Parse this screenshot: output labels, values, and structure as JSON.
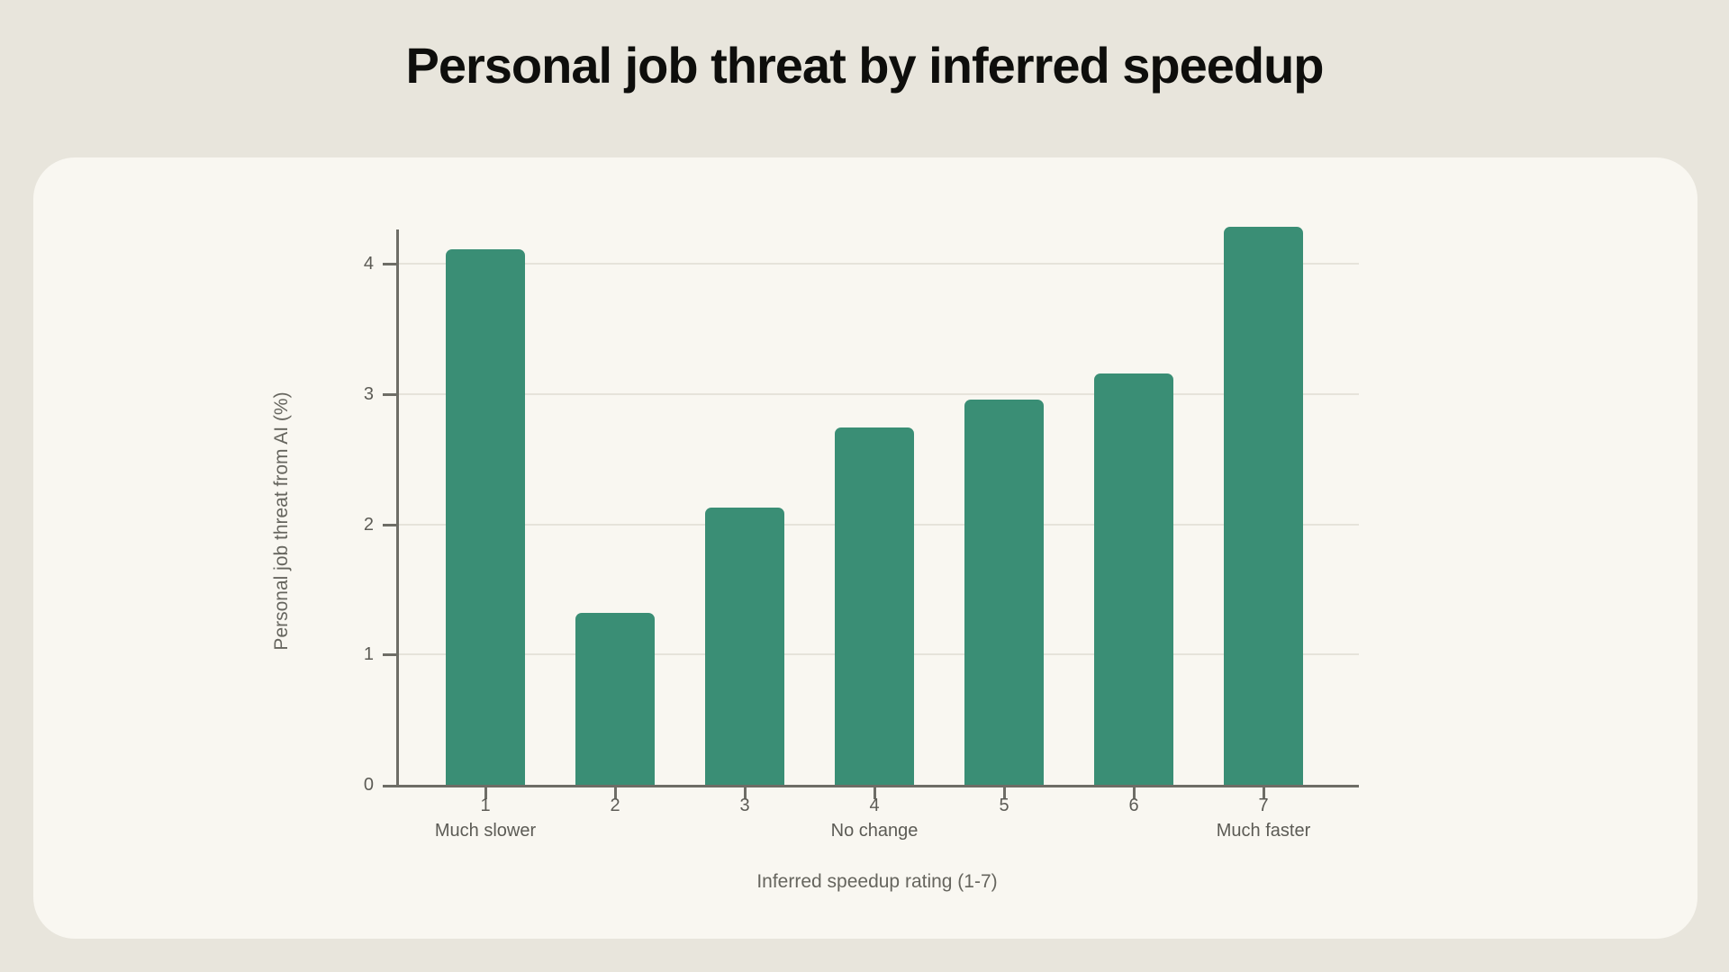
{
  "page": {
    "title": "Personal job threat by inferred speedup"
  },
  "colors": {
    "page_bg": "#e8e5dc",
    "card_bg": "#f9f7f1",
    "bar": "#3a8e75",
    "gridline": "#e6e3da",
    "axis": "#6e6d66",
    "tick_text": "#5c5b55",
    "title_text": "#0e0e0c"
  },
  "chart_data": {
    "type": "bar",
    "title": "Personal job threat by inferred speedup",
    "xlabel": "Inferred speedup rating (1-7)",
    "ylabel": "Personal job threat from AI (%)",
    "categories": [
      "1",
      "2",
      "3",
      "4",
      "5",
      "6",
      "7"
    ],
    "category_sublabels": [
      "Much slower",
      "",
      "",
      "No change",
      "",
      "",
      "Much faster"
    ],
    "values": [
      4.11,
      1.32,
      2.13,
      2.74,
      2.96,
      3.16,
      4.28
    ],
    "y_ticks": [
      0,
      1,
      2,
      3,
      4
    ],
    "ylim": [
      0,
      4.35
    ],
    "grid": "horizontal-only",
    "legend": "none"
  }
}
